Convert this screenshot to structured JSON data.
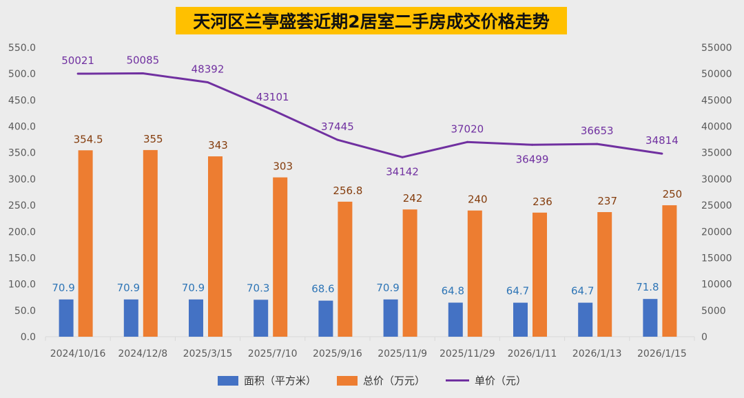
{
  "chart_data": {
    "type": "bar+line",
    "title": "天河区兰亭盛荟近期2居室二手房成交价格走势",
    "categories": [
      "2024/10/16",
      "2024/12/8",
      "2025/3/15",
      "2025/7/10",
      "2025/9/16",
      "2025/11/9",
      "2025/11/29",
      "2026/1/11",
      "2026/1/13",
      "2026/1/15"
    ],
    "series": [
      {
        "name": "面积（平方米）",
        "type": "bar",
        "axis": "left",
        "color": "#4472c4",
        "label_color": "#2e75b6",
        "values": [
          70.9,
          70.9,
          70.9,
          70.3,
          68.6,
          70.9,
          64.8,
          64.7,
          64.7,
          71.8
        ],
        "labels": [
          "70.9",
          "70.9",
          "70.9",
          "70.3",
          "68.6",
          "70.9",
          "64.8",
          "64.7",
          "64.7",
          "71.8"
        ]
      },
      {
        "name": "总价（万元）",
        "type": "bar",
        "axis": "left",
        "color": "#ed7d31",
        "label_color": "#843c0c",
        "values": [
          354.5,
          355,
          343,
          303,
          256.8,
          242,
          240,
          236,
          237,
          250
        ],
        "labels": [
          "354.5",
          "355",
          "343",
          "303",
          "256.8",
          "242",
          "240",
          "236",
          "237",
          "250"
        ]
      },
      {
        "name": "单价（元）",
        "type": "line",
        "axis": "right",
        "color": "#7030a0",
        "label_color": "#7030a0",
        "values": [
          50021,
          50085,
          48392,
          43101,
          37445,
          34142,
          37020,
          36499,
          36653,
          34814
        ],
        "labels": [
          "50021",
          "50085",
          "48392",
          "43101",
          "37445",
          "34142",
          "37020",
          "36499",
          "36653",
          "34814"
        ]
      }
    ],
    "left_axis": {
      "min": 0,
      "max": 550,
      "step": 50,
      "ticks": [
        "0.0",
        "50.0",
        "100.0",
        "150.0",
        "200.0",
        "250.0",
        "300.0",
        "350.0",
        "400.0",
        "450.0",
        "500.0",
        "550.0"
      ]
    },
    "right_axis": {
      "min": 0,
      "max": 55000,
      "step": 5000,
      "ticks": [
        "0",
        "5000",
        "10000",
        "15000",
        "20000",
        "25000",
        "30000",
        "35000",
        "40000",
        "45000",
        "50000",
        "55000"
      ]
    },
    "legend_position": "bottom",
    "grid": false
  },
  "colors": {
    "background": "#ececec",
    "title_bg": "#ffc000",
    "axis_text": "#595959",
    "axis_line": "#d9d9d9"
  }
}
